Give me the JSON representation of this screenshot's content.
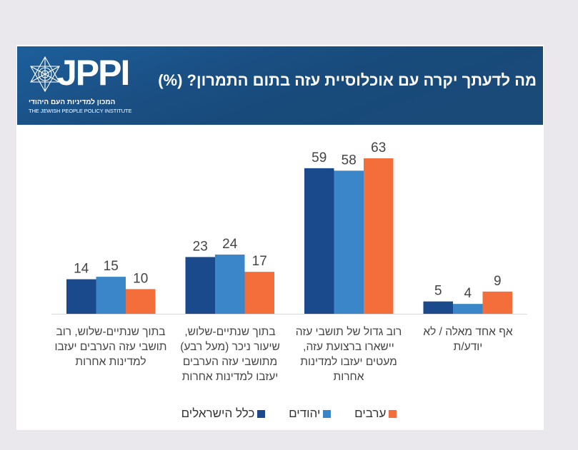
{
  "header": {
    "logo_text": "JPPI",
    "logo_hebrew": "המכון למדיניות העם היהודי",
    "logo_english": "THE JEWISH PEOPLE POLICY INSTITUTE",
    "title": "מה לדעתך יקרה עם אוכלוסיית עזה בתום התמרון? (%)"
  },
  "colors": {
    "all_israelis": "#1b4a8c",
    "jews": "#3a86c8",
    "arabs": "#f36e3b",
    "header_bg": "#184a7a",
    "page_bg": "#ebe8ed"
  },
  "chart_data": {
    "type": "bar",
    "title": "מה לדעתך יקרה עם אוכלוסיית עזה בתום התמרון? (%)",
    "xlabel": "",
    "ylabel": "",
    "ylim": [
      0,
      70
    ],
    "grid": false,
    "legend_position": "bottom",
    "categories": [
      "בתוך שנתיים-שלוש, רוב תושבי עזה הערבים יעזבו למדינות אחרות",
      "בתוך שנתיים-שלוש, שיעור ניכר (מעל רבע) מתושבי עזה הערבים יעזבו למדינות אחרות",
      "רוב גדול של תושבי עזה יישארו ברצועת עזה, מעטים יעזבו למדינות אחרות",
      "אף אחד מאלה / לא יודע/ת"
    ],
    "series": [
      {
        "name": "כלל הישראלים",
        "key": "all_israelis",
        "values": [
          14,
          23,
          59,
          5
        ]
      },
      {
        "name": "יהודים",
        "key": "jews",
        "values": [
          15,
          24,
          58,
          4
        ]
      },
      {
        "name": "ערבים",
        "key": "arabs",
        "values": [
          10,
          17,
          63,
          9
        ]
      }
    ]
  }
}
